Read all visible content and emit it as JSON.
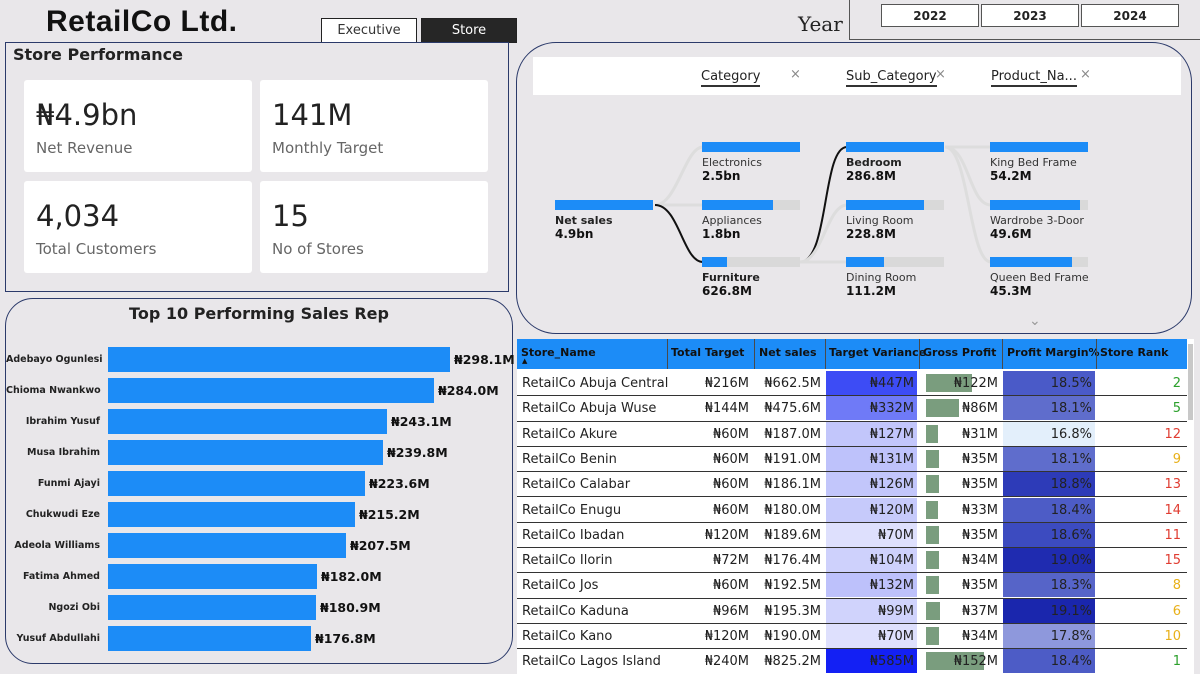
{
  "header": {
    "logo": "RetailCo Ltd.",
    "views": [
      "Executive",
      "Store"
    ],
    "year_label": "Year",
    "years": [
      "2022",
      "2023",
      "2024"
    ]
  },
  "store_performance": {
    "title": "Store Performance",
    "kpis": [
      {
        "value": "₦4.9bn",
        "label": "Net Revenue"
      },
      {
        "value": "141M",
        "label": "Monthly Target"
      },
      {
        "value": "4,034",
        "label": "Total Customers"
      },
      {
        "value": "15",
        "label": "No of Stores"
      }
    ]
  },
  "sales_reps": {
    "title": "Top 10 Performing Sales Rep",
    "max": 298.1,
    "items": [
      {
        "name": "Adebayo Ogunlesi",
        "value": 298.1,
        "label": "₦298.1M"
      },
      {
        "name": "Chioma Nwankwo",
        "value": 284.0,
        "label": "₦284.0M"
      },
      {
        "name": "Ibrahim Yusuf",
        "value": 243.1,
        "label": "₦243.1M"
      },
      {
        "name": "Musa Ibrahim",
        "value": 239.8,
        "label": "₦239.8M"
      },
      {
        "name": "Funmi Ajayi",
        "value": 223.6,
        "label": "₦223.6M"
      },
      {
        "name": "Chukwudi Eze",
        "value": 215.2,
        "label": "₦215.2M"
      },
      {
        "name": "Adeola Williams",
        "value": 207.5,
        "label": "₦207.5M"
      },
      {
        "name": "Fatima Ahmed",
        "value": 182.0,
        "label": "₦182.0M"
      },
      {
        "name": "Ngozi Obi",
        "value": 180.9,
        "label": "₦180.9M"
      },
      {
        "name": "Yusuf Abdullahi",
        "value": 176.8,
        "label": "₦176.8M"
      }
    ]
  },
  "tree": {
    "columns": [
      "Category",
      "Sub_Category",
      "Product_Na..."
    ],
    "close_glyph": "×",
    "chevron": "⌄",
    "root": {
      "name": "Net sales",
      "value": "4.9bn",
      "fill": 1.0
    },
    "categories": [
      {
        "name": "Electronics",
        "value": "2.5bn",
        "fill": 1.0,
        "bold": false
      },
      {
        "name": "Appliances",
        "value": "1.8bn",
        "fill": 0.72,
        "bold": false
      },
      {
        "name": "Furniture",
        "value": "626.8M",
        "fill": 0.25,
        "bold": true
      }
    ],
    "sub_categories": [
      {
        "name": "Bedroom",
        "value": "286.8M",
        "fill": 1.0,
        "bold": true
      },
      {
        "name": "Living Room",
        "value": "228.8M",
        "fill": 0.8,
        "bold": false
      },
      {
        "name": "Dining Room",
        "value": "111.2M",
        "fill": 0.39,
        "bold": false
      }
    ],
    "products": [
      {
        "name": "King Bed Frame",
        "value": "54.2M",
        "fill": 1.0,
        "bold": false
      },
      {
        "name": "Wardrobe 3-Door",
        "value": "49.6M",
        "fill": 0.92,
        "bold": false
      },
      {
        "name": "Queen Bed Frame...",
        "value": "45.3M",
        "fill": 0.84,
        "bold": false
      }
    ]
  },
  "table": {
    "columns": [
      "Store_Name",
      "Total Target",
      "Net sales",
      "Target Variance",
      "Gross Profit",
      "Profit Margin%",
      "Store Rank"
    ],
    "sort_glyph": "▲",
    "rows": [
      {
        "store": "RetailCo Abuja Central",
        "target": "₦216M",
        "net": "₦662.5M",
        "variance": "₦447M",
        "vcolor": "#3d4cf5",
        "gp": "₦122M",
        "gpw": 0.8,
        "margin": "18.5%",
        "mcolor": "#4a5ac8",
        "rank": "2",
        "rcolor": "#2ca02c"
      },
      {
        "store": "RetailCo Abuja Wuse",
        "target": "₦144M",
        "net": "₦475.6M",
        "variance": "₦332M",
        "vcolor": "#6f7af7",
        "gp": "₦86M",
        "gpw": 0.57,
        "margin": "18.1%",
        "mcolor": "#5f6dcc",
        "rank": "5",
        "rcolor": "#2ca02c"
      },
      {
        "store": "RetailCo Akure",
        "target": "₦60M",
        "net": "₦187.0M",
        "variance": "₦127M",
        "vcolor": "#c2c6fb",
        "gp": "₦31M",
        "gpw": 0.2,
        "margin": "16.8%",
        "mcolor": "#e3effb",
        "rank": "12",
        "rcolor": "#e03c31"
      },
      {
        "store": "RetailCo Benin",
        "target": "₦60M",
        "net": "₦191.0M",
        "variance": "₦131M",
        "vcolor": "#bec2fb",
        "gp": "₦35M",
        "gpw": 0.22,
        "margin": "18.1%",
        "mcolor": "#5f6dcc",
        "rank": "9",
        "rcolor": "#e8b019"
      },
      {
        "store": "RetailCo Calabar",
        "target": "₦60M",
        "net": "₦186.1M",
        "variance": "₦126M",
        "vcolor": "#c2c6fb",
        "gp": "₦35M",
        "gpw": 0.22,
        "margin": "18.8%",
        "mcolor": "#2d3bb8",
        "rank": "13",
        "rcolor": "#e03c31"
      },
      {
        "store": "RetailCo Enugu",
        "target": "₦60M",
        "net": "₦180.0M",
        "variance": "₦120M",
        "vcolor": "#c6cafb",
        "gp": "₦33M",
        "gpw": 0.21,
        "margin": "18.4%",
        "mcolor": "#4d5cc6",
        "rank": "14",
        "rcolor": "#e03c31"
      },
      {
        "store": "RetailCo Ibadan",
        "target": "₦120M",
        "net": "₦189.6M",
        "variance": "₦70M",
        "vcolor": "#dee0fd",
        "gp": "₦35M",
        "gpw": 0.22,
        "margin": "18.6%",
        "mcolor": "#3c4bc0",
        "rank": "11",
        "rcolor": "#e03c31"
      },
      {
        "store": "RetailCo Ilorin",
        "target": "₦72M",
        "net": "₦176.4M",
        "variance": "₦104M",
        "vcolor": "#ced1fc",
        "gp": "₦34M",
        "gpw": 0.22,
        "margin": "19.0%",
        "mcolor": "#1f2bb0",
        "rank": "15",
        "rcolor": "#e03c31"
      },
      {
        "store": "RetailCo Jos",
        "target": "₦60M",
        "net": "₦192.5M",
        "variance": "₦132M",
        "vcolor": "#bdc1fb",
        "gp": "₦35M",
        "gpw": 0.22,
        "margin": "18.3%",
        "mcolor": "#5664c8",
        "rank": "8",
        "rcolor": "#e8b019"
      },
      {
        "store": "RetailCo Kaduna",
        "target": "₦96M",
        "net": "₦195.3M",
        "variance": "₦99M",
        "vcolor": "#d0d3fc",
        "gp": "₦37M",
        "gpw": 0.24,
        "margin": "19.1%",
        "mcolor": "#1a26ad",
        "rank": "6",
        "rcolor": "#e8b019"
      },
      {
        "store": "RetailCo Kano",
        "target": "₦120M",
        "net": "₦190.0M",
        "variance": "₦70M",
        "vcolor": "#dee0fd",
        "gp": "₦34M",
        "gpw": 0.22,
        "margin": "17.8%",
        "mcolor": "#8e98dc",
        "rank": "10",
        "rcolor": "#e8b019"
      },
      {
        "store": "RetailCo Lagos Island",
        "target": "₦240M",
        "net": "₦825.2M",
        "variance": "₦585M",
        "vcolor": "#1320f4",
        "gp": "₦152M",
        "gpw": 1.0,
        "margin": "18.4%",
        "mcolor": "#4d5cc6",
        "rank": "1",
        "rcolor": "#2ca02c"
      }
    ]
  }
}
